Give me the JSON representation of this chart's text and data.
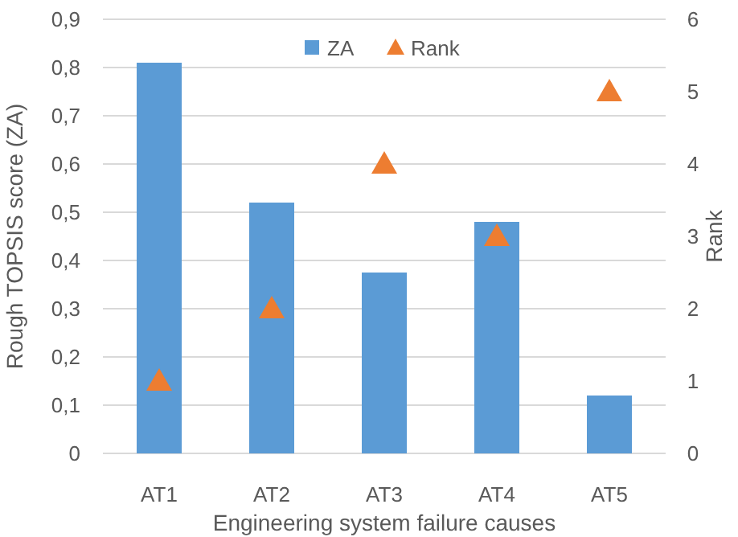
{
  "chart_data": {
    "type": "bar",
    "xlabel": "Engineering system failure causes",
    "ylabel": "Rough TOPSIS score (ZA)",
    "y2label": "Rank",
    "categories": [
      "AT1",
      "AT2",
      "AT3",
      "AT4",
      "AT5"
    ],
    "series": [
      {
        "name": "ZA",
        "color": "#5b9bd5",
        "values": [
          0.81,
          0.52,
          0.375,
          0.48,
          0.12
        ]
      },
      {
        "name": "Rank",
        "type": "scatter",
        "axis": "y2",
        "marker": "triangle",
        "color": "#ed7d31",
        "values": [
          1,
          2,
          4,
          3,
          5
        ]
      }
    ],
    "ylim": [
      0,
      0.9
    ],
    "yticks": [
      0,
      {
        "value": 0.1,
        "label": "0,1"
      },
      {
        "value": 0.2,
        "label": "0,2"
      },
      {
        "value": 0.3,
        "label": "0,3"
      },
      {
        "value": 0.4,
        "label": "0,4"
      },
      {
        "value": 0.5,
        "label": "0,5"
      },
      {
        "value": 0.6,
        "label": "0,6"
      },
      {
        "value": 0.7,
        "label": "0,7"
      },
      {
        "value": 0.8,
        "label": "0,8"
      },
      {
        "value": 0.9,
        "label": "0,9"
      }
    ],
    "y2lim": [
      0,
      6
    ],
    "y2ticks": [
      0,
      1,
      2,
      3,
      4,
      5,
      6
    ],
    "grid": "y",
    "legend": "top"
  }
}
